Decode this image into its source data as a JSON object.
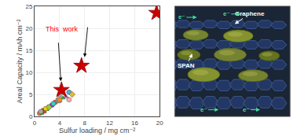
{
  "chart_data": {
    "type": "scatter",
    "x_label": "Sulfur loading / mg cm⁻²",
    "y_label": "Areal Capacity / mAh cm⁻²",
    "xlim": [
      0,
      20
    ],
    "ylim": [
      0,
      25
    ],
    "xticks": [
      0,
      4,
      8,
      12,
      16,
      20
    ],
    "yticks": [
      0,
      5,
      10,
      15,
      20,
      25
    ],
    "grid": true,
    "series": [
      {
        "x": [
          0.8
        ],
        "values": [
          0.7
        ],
        "color": "#dd7733",
        "marker": "circle"
      },
      {
        "x": [
          1.2
        ],
        "values": [
          0.9
        ],
        "color": "#44bb44",
        "marker": "circle"
      },
      {
        "x": [
          1.5
        ],
        "values": [
          1.3
        ],
        "color": "#bb5522",
        "marker": "square"
      },
      {
        "x": [
          1.8
        ],
        "values": [
          1.6
        ],
        "color": "#3366cc",
        "marker": "triangle-up"
      },
      {
        "x": [
          2.2
        ],
        "values": [
          2.0
        ],
        "color": "#44bb44",
        "marker": "diamond"
      },
      {
        "x": [
          2.5
        ],
        "values": [
          2.3
        ],
        "color": "#cc3333",
        "marker": "triangle-down"
      },
      {
        "x": [
          1.0
        ],
        "values": [
          1.1
        ],
        "color": "#aaaaaa",
        "marker": "circle"
      },
      {
        "x": [
          1.8
        ],
        "values": [
          1.8
        ],
        "color": "#ffcc00",
        "marker": "circle"
      },
      {
        "x": [
          2.8
        ],
        "values": [
          2.6
        ],
        "color": "#9933cc",
        "marker": "circle"
      },
      {
        "x": [
          3.3
        ],
        "values": [
          3.2
        ],
        "color": "#ff6600",
        "marker": "circle"
      },
      {
        "x": [
          3.8
        ],
        "values": [
          3.6
        ],
        "color": "#aaaaaa",
        "marker": "square"
      },
      {
        "x": [
          4.5
        ],
        "values": [
          4.2
        ],
        "color": "#44bb44",
        "marker": "triangle-up"
      },
      {
        "x": [
          4.0
        ],
        "values": [
          5.0
        ],
        "color": "#aaaaaa",
        "marker": "circle"
      },
      {
        "x": [
          5.5
        ],
        "values": [
          3.8
        ],
        "color": "#ffaaaa",
        "marker": "circle"
      },
      {
        "x": [
          2.3
        ],
        "values": [
          2.1
        ],
        "color": "#99cc33",
        "marker": "diamond"
      },
      {
        "x": [
          3.0
        ],
        "values": [
          2.9
        ],
        "color": "#33cccc",
        "marker": "circle"
      },
      {
        "x": [
          4.0
        ],
        "values": [
          3.8
        ],
        "color": "#ee8833",
        "marker": "square"
      },
      {
        "x": [
          5.0
        ],
        "values": [
          4.5
        ],
        "color": "#cc66cc",
        "marker": "triangle-up"
      },
      {
        "x": [
          5.5
        ],
        "values": [
          5.5
        ],
        "color": "#55aadd",
        "marker": "circle"
      },
      {
        "x": [
          6.0
        ],
        "values": [
          5.0
        ],
        "color": "#ddbb33",
        "marker": "diamond"
      },
      {
        "x": [
          4.3,
          7.5,
          19.5
        ],
        "values": [
          6.0,
          11.5,
          23.5
        ],
        "color": "#cc0000",
        "marker": "star"
      }
    ],
    "annotations": [
      {
        "text": "This  work",
        "x": 1.5,
        "y": 18.5,
        "color": "red"
      },
      {
        "arrow_from": [
          3.8,
          17.0
        ],
        "arrow_to": [
          4.2,
          8.0
        ]
      },
      {
        "arrow_from": [
          8.5,
          20.5
        ],
        "arrow_to": [
          8.0,
          13.5
        ]
      }
    ],
    "illustration_labels": [
      "Graphene",
      "SPAN",
      "e⁻",
      "e⁻",
      "e⁻",
      "e⁻"
    ]
  }
}
